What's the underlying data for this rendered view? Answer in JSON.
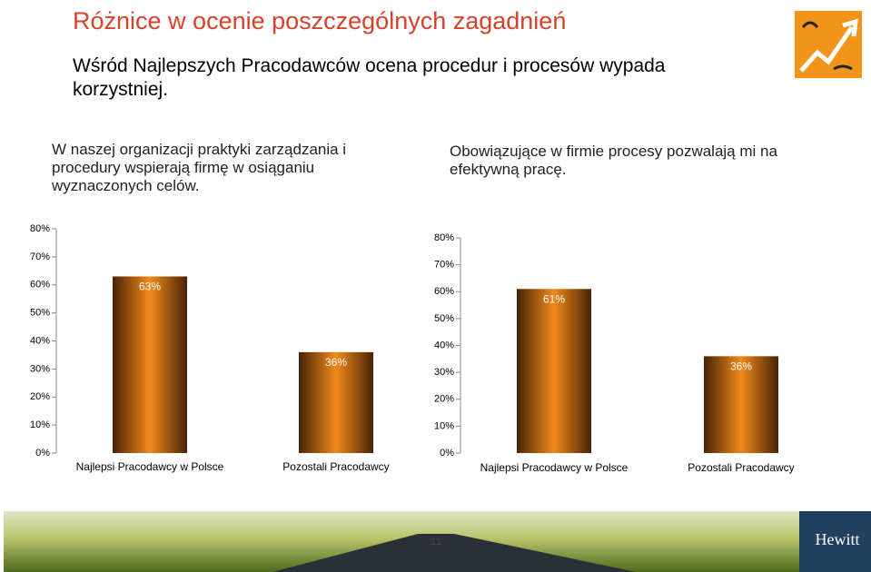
{
  "header": {
    "title": "Różnice w ocenie poszczególnych zagadnień",
    "subtitle": "Wśród Najlepszych Pracodawców ocena procedur i procesów wypada korzystniej."
  },
  "chart_data": [
    {
      "type": "bar",
      "title": "W naszej organizacji praktyki zarządzania i procedury wspierają firmę w osiąganiu wyznaczonych celów.",
      "categories": [
        "Najlepsi Pracodawcy w Polsce",
        "Pozostali Pracodawcy"
      ],
      "values": [
        63,
        36
      ],
      "value_labels": [
        "63%",
        "36%"
      ],
      "color": "#f08a1a",
      "ylim": [
        0,
        80
      ],
      "yticks": [
        {
          "value": 0,
          "label": "0%"
        },
        {
          "value": 10,
          "label": "10%"
        },
        {
          "value": 20,
          "label": "20%"
        },
        {
          "value": 30,
          "label": "30%"
        },
        {
          "value": 40,
          "label": "40%"
        },
        {
          "value": 50,
          "label": "50%"
        },
        {
          "value": 60,
          "label": "60%"
        },
        {
          "value": 70,
          "label": "70%"
        },
        {
          "value": 80,
          "label": "80%"
        }
      ]
    },
    {
      "type": "bar",
      "title": "Obowiązujące w firmie procesy pozwalają mi na efektywną pracę.",
      "categories": [
        "Najlepsi Pracodawcy w Polsce",
        "Pozostali Pracodawcy"
      ],
      "values": [
        61,
        36
      ],
      "value_labels": [
        "61%",
        "36%"
      ],
      "color": "#f08a1a",
      "ylim": [
        0,
        80
      ],
      "yticks": [
        {
          "value": 0,
          "label": "0%"
        },
        {
          "value": 10,
          "label": "10%"
        },
        {
          "value": 20,
          "label": "20%"
        },
        {
          "value": 30,
          "label": "30%"
        },
        {
          "value": 40,
          "label": "40%"
        },
        {
          "value": 50,
          "label": "50%"
        },
        {
          "value": 60,
          "label": "60%"
        },
        {
          "value": 70,
          "label": "70%"
        },
        {
          "value": 80,
          "label": "80%"
        }
      ]
    }
  ],
  "footer": {
    "page_number": "11",
    "logo_text": "Hewitt"
  }
}
